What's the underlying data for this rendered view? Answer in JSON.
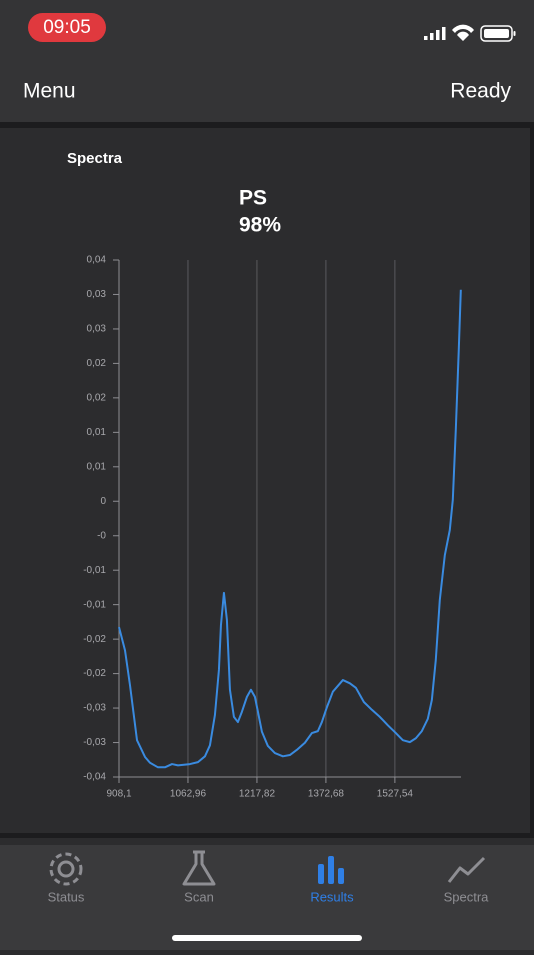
{
  "status_bar": {
    "time": "09:05"
  },
  "nav": {
    "left": "Menu",
    "right": "Ready"
  },
  "section_title": "Spectra",
  "chart_data": {
    "type": "line",
    "title": "PS",
    "subtitle": "98%",
    "x": [
      908.1,
      921.6,
      932.8,
      948.5,
      966.5,
      977.7,
      995.6,
      1011.3,
      1027.1,
      1040.5,
      1067.4,
      1085.4,
      1101.1,
      1112.3,
      1123.5,
      1132.5,
      1137.0,
      1143.7,
      1150.4,
      1157.2,
      1166.1,
      1175.1,
      1184.1,
      1195.3,
      1204.3,
      1213.3,
      1220.0,
      1229.0,
      1242.4,
      1258.1,
      1276.1,
      1291.8,
      1307.5,
      1325.5,
      1341.2,
      1354.6,
      1363.6,
      1374.9,
      1388.3,
      1410.8,
      1426.5,
      1440.0,
      1457.9,
      1475.9,
      1493.8,
      1511.8,
      1529.7,
      1545.4,
      1561.1,
      1574.6,
      1588.1,
      1601.5,
      1610.5,
      1619.4,
      1628.4,
      1639.6,
      1650.8,
      1657.6,
      1664.3,
      1671.0,
      1675.6
    ],
    "values": [
      -0.0168,
      -0.0204,
      -0.0258,
      -0.0343,
      -0.0369,
      -0.0378,
      -0.0385,
      -0.0385,
      -0.038,
      -0.0382,
      -0.038,
      -0.0377,
      -0.0368,
      -0.0351,
      -0.0304,
      -0.0234,
      -0.0165,
      -0.0115,
      -0.0157,
      -0.0265,
      -0.0307,
      -0.0315,
      -0.0299,
      -0.0276,
      -0.0265,
      -0.0276,
      -0.0299,
      -0.033,
      -0.0352,
      -0.0363,
      -0.0368,
      -0.0366,
      -0.0358,
      -0.0347,
      -0.0332,
      -0.0329,
      -0.0315,
      -0.0292,
      -0.0268,
      -0.025,
      -0.0255,
      -0.0262,
      -0.0284,
      -0.0296,
      -0.0307,
      -0.032,
      -0.0332,
      -0.0343,
      -0.0346,
      -0.034,
      -0.0329,
      -0.031,
      -0.0281,
      -0.0219,
      -0.0126,
      -0.0057,
      -0.0018,
      0.0029,
      0.0137,
      0.0261,
      0.0354
    ],
    "color": "#3a8be0",
    "xlim": [
      908.1,
      1676.0
    ],
    "xticks": [
      {
        "value": 908.1,
        "label": "908,1"
      },
      {
        "value": 1062.96,
        "label": "1062,96"
      },
      {
        "value": 1217.82,
        "label": "1217,82"
      },
      {
        "value": 1372.68,
        "label": "1372,68"
      },
      {
        "value": 1527.54,
        "label": "1527,54"
      }
    ],
    "ylim": [
      -0.04,
      0.04
    ],
    "yticks": [
      {
        "value": 0.04,
        "label": "0,04"
      },
      {
        "value": 0.03467,
        "label": "0,03"
      },
      {
        "value": 0.02933,
        "label": "0,03"
      },
      {
        "value": 0.024,
        "label": "0,02"
      },
      {
        "value": 0.01867,
        "label": "0,02"
      },
      {
        "value": 0.01333,
        "label": "0,01"
      },
      {
        "value": 0.008,
        "label": "0,01"
      },
      {
        "value": 0.00267,
        "label": "0"
      },
      {
        "value": -0.00267,
        "label": "-0"
      },
      {
        "value": -0.008,
        "label": "-0,01"
      },
      {
        "value": -0.01333,
        "label": "-0,01"
      },
      {
        "value": -0.01867,
        "label": "-0,02"
      },
      {
        "value": -0.024,
        "label": "-0,02"
      },
      {
        "value": -0.02933,
        "label": "-0,03"
      },
      {
        "value": -0.03467,
        "label": "-0,03"
      },
      {
        "value": -0.04,
        "label": "-0,04"
      }
    ],
    "grid_x": true
  },
  "tabs": [
    "Status",
    "Scan",
    "Results",
    "Spectra"
  ],
  "active_tab": 2
}
